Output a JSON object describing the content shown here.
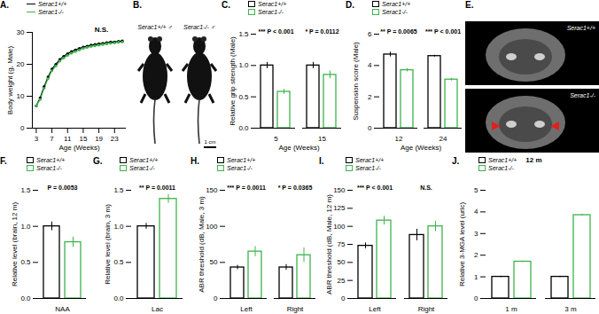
{
  "chart_data": [
    {
      "panel": "A.",
      "type": "line",
      "marker": "circle",
      "x_label": "Age (Weeks)",
      "y_label": "Body weight (g, Male)",
      "x": [
        3,
        4,
        5,
        6,
        7,
        8,
        9,
        10,
        11,
        12,
        13,
        14,
        15,
        16,
        17,
        18,
        19,
        20,
        21,
        22,
        23,
        24,
        25
      ],
      "series": [
        {
          "name": "Serac1+/+",
          "color": "#000000",
          "values": [
            7,
            9.5,
            13,
            16,
            18.5,
            20,
            21.5,
            22.5,
            23.3,
            24,
            24.5,
            25,
            25.4,
            25.7,
            26,
            26.2,
            26.4,
            26.6,
            26.8,
            27,
            27,
            27.2,
            27.3
          ]
        },
        {
          "name": "Serac1-/-",
          "color": "#3cb44b",
          "values": [
            7,
            9,
            12.5,
            15.5,
            18,
            19.5,
            21,
            22,
            22.8,
            23.5,
            24,
            24.5,
            25,
            25.3,
            25.6,
            25.8,
            26,
            26.2,
            26.4,
            26.6,
            26.7,
            26.9,
            27
          ]
        }
      ],
      "xlim": [
        2,
        26
      ],
      "xticks": [
        3,
        7,
        11,
        15,
        19,
        23
      ],
      "ylim": [
        0,
        30
      ],
      "yticks": [
        0,
        10,
        20,
        30
      ],
      "annotations": [
        "N.S."
      ]
    },
    {
      "panel": "B.",
      "type": "image",
      "labels": [
        "Serac1+/+ ♂",
        "Serac1-/- ♂"
      ],
      "scale_bar": "1 cm"
    },
    {
      "panel": "C.",
      "type": "bar",
      "x_label": "Age (Weeks)",
      "y_label": "Relative grip strength (Male)",
      "categories": [
        "5",
        "15"
      ],
      "series": [
        {
          "name": "Serac1+/+",
          "color": "#000000",
          "values": [
            1.0,
            1.0
          ],
          "errors": [
            0.05,
            0.05
          ]
        },
        {
          "name": "Serac1-/-",
          "color": "#3cb44b",
          "values": [
            0.58,
            0.85
          ],
          "errors": [
            0.04,
            0.06
          ]
        }
      ],
      "ylim": [
        0,
        1.5
      ],
      "yticks": [
        {
          "value": 0,
          "label": "0.0"
        },
        {
          "value": 0.5,
          "label": "0.5"
        },
        {
          "value": 1,
          "label": "1.0"
        },
        {
          "value": 1.5,
          "label": "1.5"
        }
      ],
      "annotations": [
        {
          "category": "5",
          "text": "*** P < 0.001"
        },
        {
          "category": "15",
          "text": "* P = 0.0112"
        }
      ]
    },
    {
      "panel": "D.",
      "type": "bar",
      "x_label": "Age (Weeks)",
      "y_label": "Suspension score (Male)",
      "categories": [
        "12",
        "24"
      ],
      "series": [
        {
          "name": "Serac1+/+",
          "color": "#000000",
          "values": [
            4.7,
            4.6
          ],
          "errors": [
            0.15,
            0.05
          ]
        },
        {
          "name": "Serac1-/-",
          "color": "#3cb44b",
          "values": [
            3.7,
            3.1
          ],
          "errors": [
            0.1,
            0.08
          ]
        }
      ],
      "ylim": [
        0,
        6
      ],
      "yticks": [
        0,
        2,
        4,
        6
      ],
      "annotations": [
        {
          "category": "12",
          "text": "** P = 0.0065"
        },
        {
          "category": "24",
          "text": "*** P < 0.001"
        }
      ]
    },
    {
      "panel": "E.",
      "type": "image",
      "labels": [
        "Serac1+/+",
        "Serac1-/-"
      ]
    },
    {
      "panel": "F.",
      "type": "bar",
      "y_label": "Relative level (brain, 12 m)",
      "categories": [
        "NAA"
      ],
      "series": [
        {
          "name": "Serac1+/+",
          "color": "#000000",
          "values": [
            1.0
          ],
          "errors": [
            0.06
          ]
        },
        {
          "name": "Serac1-/-",
          "color": "#3cb44b",
          "values": [
            0.78
          ],
          "errors": [
            0.07
          ]
        }
      ],
      "ylim": [
        0,
        1.5
      ],
      "yticks": [
        {
          "value": 0,
          "label": "0.0"
        },
        {
          "value": 0.5,
          "label": "0.5"
        },
        {
          "value": 1,
          "label": "1.0"
        },
        {
          "value": 1.5,
          "label": "1.5"
        }
      ],
      "annotations": [
        {
          "category": "NAA",
          "text": "P = 0.0053"
        }
      ]
    },
    {
      "panel": "G.",
      "type": "bar",
      "y_label": "Relative level (brain, 3 m)",
      "categories": [
        "Lac"
      ],
      "series": [
        {
          "name": "Serac1+/+",
          "color": "#000000",
          "values": [
            1.0
          ],
          "errors": [
            0.04
          ]
        },
        {
          "name": "Serac1-/-",
          "color": "#3cb44b",
          "values": [
            1.38
          ],
          "errors": [
            0.06
          ]
        }
      ],
      "ylim": [
        0,
        1.5
      ],
      "yticks": [
        {
          "value": 0,
          "label": "0.0"
        },
        {
          "value": 0.5,
          "label": "0.5"
        },
        {
          "value": 1,
          "label": "1.0"
        },
        {
          "value": 1.5,
          "label": "1.5"
        }
      ],
      "annotations": [
        {
          "category": "Lac",
          "text": "** P = 0.0011"
        }
      ]
    },
    {
      "panel": "H.",
      "type": "bar",
      "y_label": "ABR threshold (dB, Male, 3 m)",
      "categories": [
        "Left",
        "Right"
      ],
      "series": [
        {
          "name": "Serac1+/+",
          "color": "#000000",
          "values": [
            43,
            43
          ],
          "errors": [
            3,
            4
          ]
        },
        {
          "name": "Serac1-/-",
          "color": "#3cb44b",
          "values": [
            65,
            60
          ],
          "errors": [
            7,
            10
          ]
        }
      ],
      "ylim": [
        0,
        150
      ],
      "yticks": [
        0,
        50,
        100,
        150
      ],
      "annotations": [
        {
          "category": "Left",
          "text": "*** P = 0.0011"
        },
        {
          "category": "Right",
          "text": "* P = 0.0365"
        }
      ]
    },
    {
      "panel": "I.",
      "type": "bar",
      "y_label": "ABR threshold (dB, Male, 12 m)",
      "categories": [
        "Left",
        "Right"
      ],
      "series": [
        {
          "name": "Serac1+/+",
          "color": "#000000",
          "values": [
            73,
            88
          ],
          "errors": [
            4,
            8
          ]
        },
        {
          "name": "Serac1-/-",
          "color": "#3cb44b",
          "values": [
            108,
            100
          ],
          "errors": [
            6,
            7
          ]
        }
      ],
      "ylim": [
        0,
        150
      ],
      "yticks": [
        0,
        25,
        50,
        75,
        100,
        125,
        150
      ],
      "annotations": [
        {
          "category": "Left",
          "text": "*** P < 0.001"
        },
        {
          "category": "Right",
          "text": "N.S."
        }
      ]
    },
    {
      "panel": "J.",
      "type": "bar",
      "title": "12 m",
      "y_label": "Relative 3-MGA level (uric)",
      "categories": [
        "1 m",
        "3 m"
      ],
      "series": [
        {
          "name": "Serac1+/+",
          "color": "#000000",
          "values": [
            1.0,
            1.0
          ],
          "errors": [
            0.03,
            0.03
          ]
        },
        {
          "name": "Serac1-/-",
          "color": "#3cb44b",
          "values": [
            1.7,
            3.85
          ],
          "errors": [
            0.03,
            0.04
          ]
        }
      ],
      "ylim": [
        0,
        5
      ],
      "yticks": [
        0,
        1,
        2,
        3,
        4,
        5
      ]
    }
  ]
}
